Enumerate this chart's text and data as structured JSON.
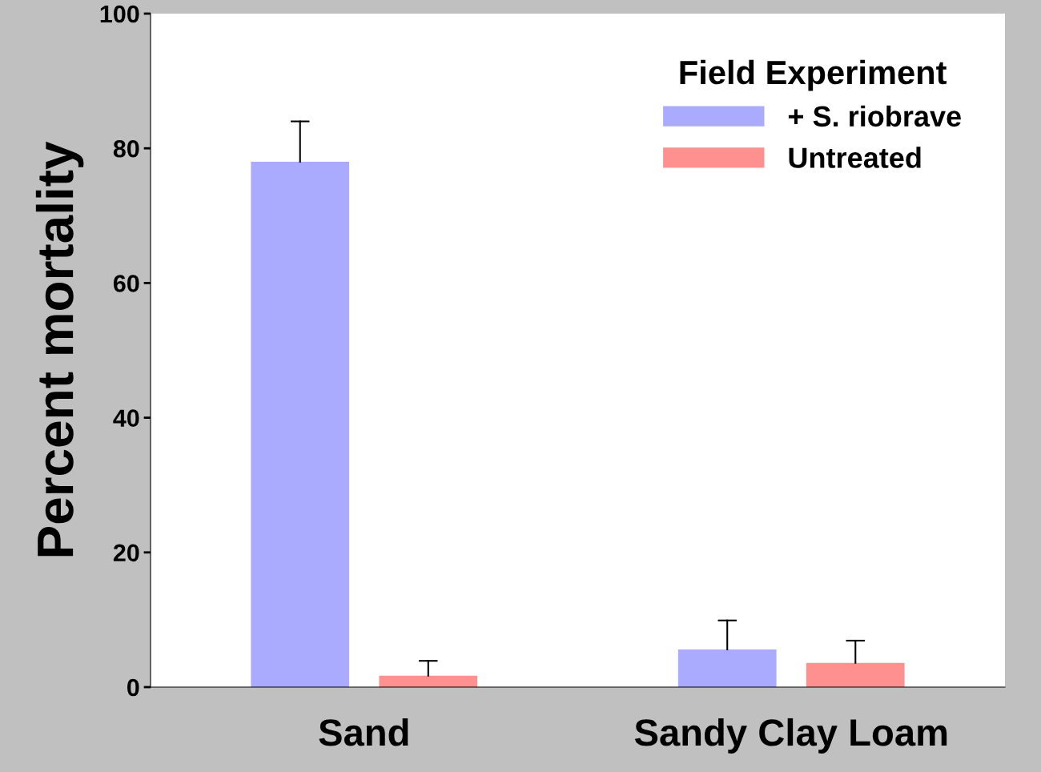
{
  "chart_data": {
    "type": "bar",
    "ylabel": "Percent mortality",
    "legend_title": "Field Experiment",
    "categories": [
      "Sand",
      "Sandy Clay Loam"
    ],
    "series": [
      {
        "name": "+ S. riobrave",
        "color": "#aaaaff",
        "values": [
          78.0,
          5.6
        ],
        "errors": [
          [
            78.0,
            84.0
          ],
          [
            5.6,
            9.9
          ]
        ]
      },
      {
        "name": "Untreated",
        "color": "#ff9090",
        "values": [
          1.7,
          3.6
        ],
        "errors": [
          [
            1.7,
            3.9
          ],
          [
            3.6,
            6.9
          ]
        ]
      }
    ],
    "ylim": [
      0,
      100
    ],
    "yticks": [
      0,
      20,
      40,
      60,
      80,
      100
    ],
    "grid": false,
    "legend": "top right"
  }
}
